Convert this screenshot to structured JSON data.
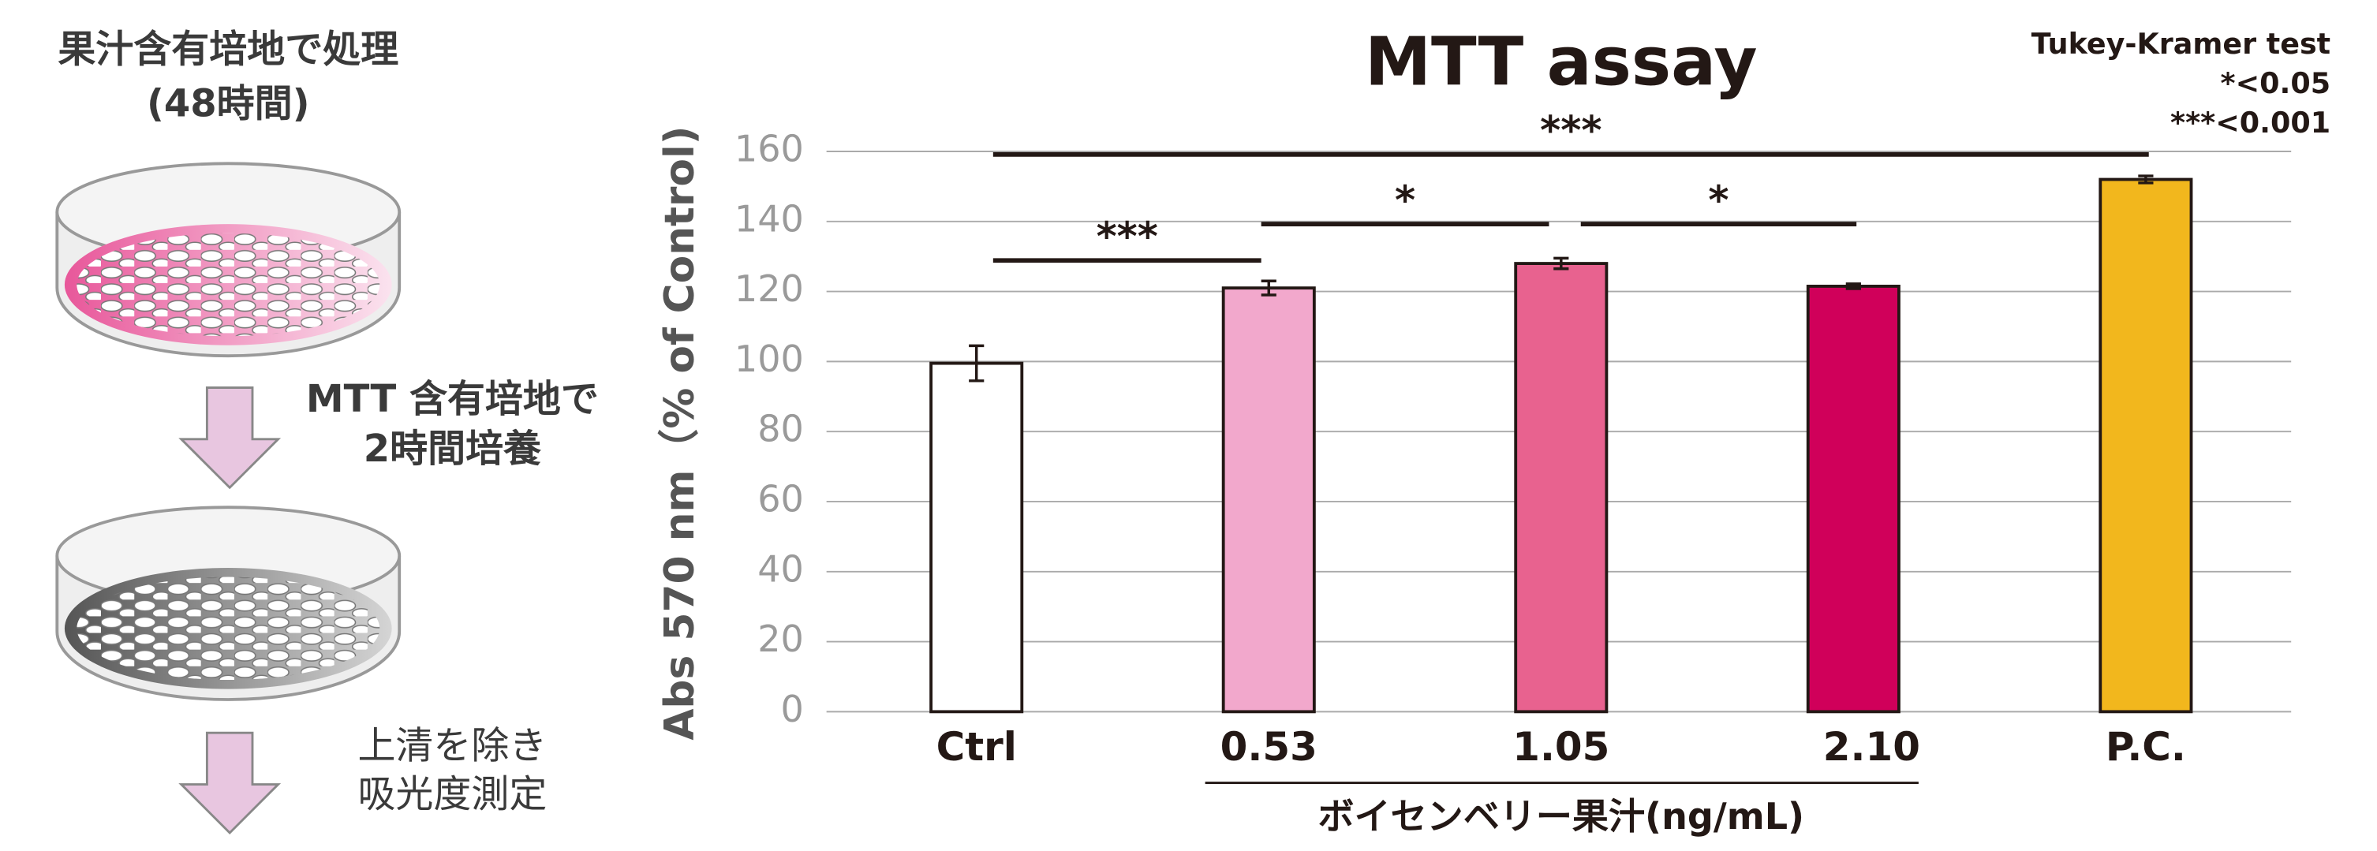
{
  "procedure": {
    "steps": [
      "果汁含有培地で処理",
      "(48時間)",
      "MTT 含有培地で",
      "2時間培養",
      "上清を除き",
      "吸光度測定"
    ]
  },
  "chart_data": {
    "type": "bar",
    "title": "MTT assay",
    "y_label": "Abs 570 nm（% of Control)",
    "categories": [
      "Ctrl",
      "0.53",
      "1.05",
      "2.10",
      "P.C."
    ],
    "values": [
      99.5,
      121,
      128,
      121.5,
      152
    ],
    "errors": [
      5,
      2,
      1.5,
      0.7,
      1
    ],
    "colors": [
      "#ffffff",
      "#f2a8cc",
      "#e8628f",
      "#d0005a",
      "#f2b71d"
    ],
    "group_label": "ボイセンベリー果汁(ng/mL)",
    "ylim": [
      0,
      160
    ],
    "yticks": [
      0,
      20,
      40,
      60,
      80,
      100,
      120,
      140,
      160
    ],
    "grid": true,
    "significance": [
      "***",
      "*",
      "*",
      "***"
    ],
    "test_note": [
      "Tukey-Kramer test",
      "*<0.05",
      "***<0.001"
    ]
  }
}
